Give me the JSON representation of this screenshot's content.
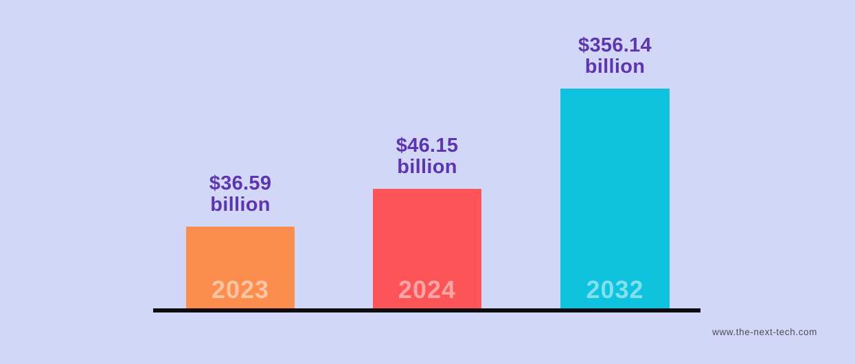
{
  "page": {
    "background_color": "#d2d6f7",
    "watermark": "www.the-next-tech.com"
  },
  "chart_data": {
    "type": "bar",
    "title": "",
    "categories": [
      "2023",
      "2024",
      "2032"
    ],
    "values": [
      36.59,
      46.15,
      356.14
    ],
    "unit": "billion",
    "grid": false,
    "legend": false,
    "value_label_color": "#5d35b0",
    "baseline_color": "#0b0b10",
    "bars": [
      {
        "year": "2023",
        "value_line1": "$36.59",
        "value_line2": "billion",
        "bar_color": "#fb8e4e",
        "year_label_color": "#fecda9"
      },
      {
        "year": "2024",
        "value_line1": "$46.15",
        "value_line2": "billion",
        "bar_color": "#fc5457",
        "year_label_color": "#fc9fa3"
      },
      {
        "year": "2032",
        "value_line1": "$356.14",
        "value_line2": "billion",
        "bar_color": "#0fc3de",
        "year_label_color": "#7adeec"
      }
    ]
  }
}
